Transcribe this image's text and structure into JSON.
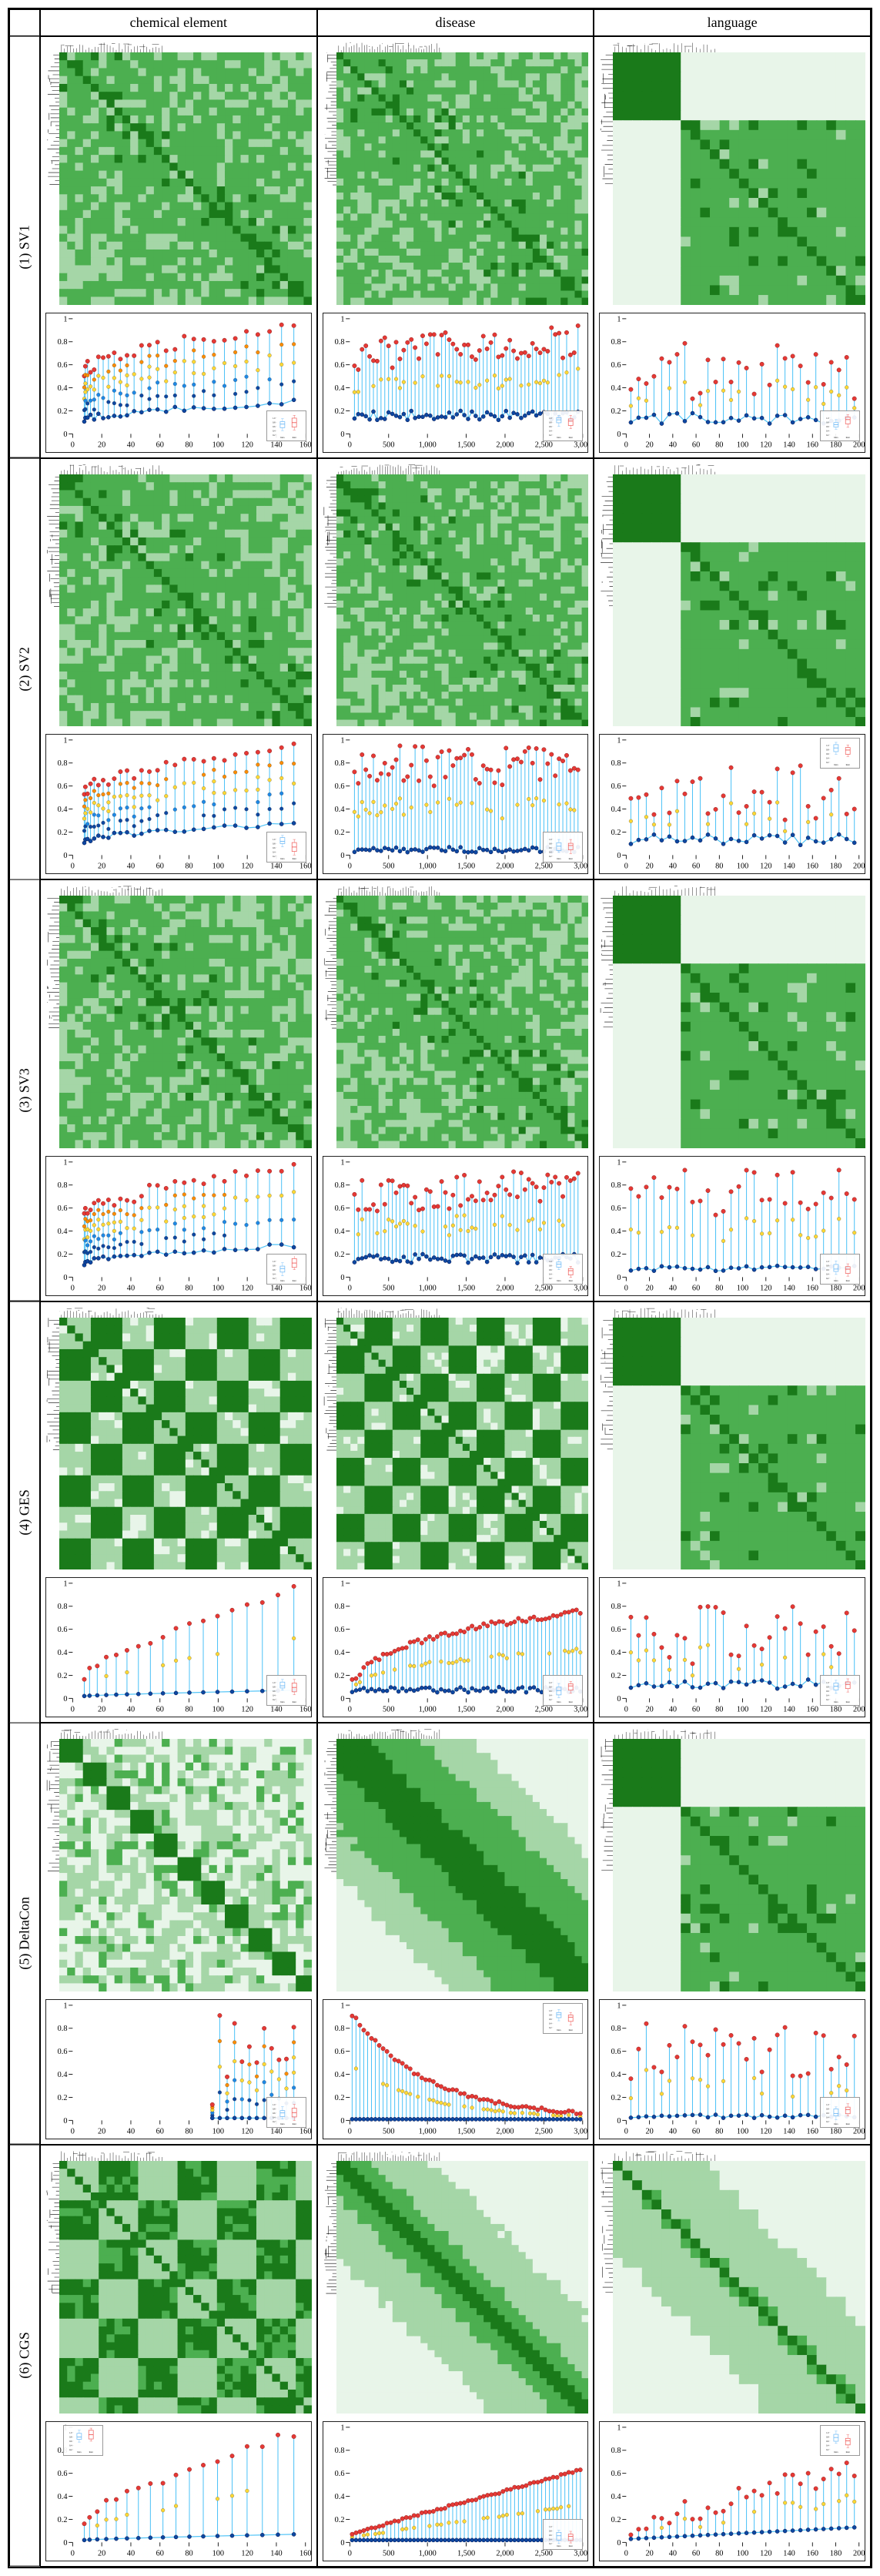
{
  "columns": [
    "chemical element",
    "disease",
    "language"
  ],
  "rows": [
    "(1) SV1",
    "(2) SV2",
    "(3) SV3",
    "(4) GES",
    "(5) DeltaCon",
    "(6) CGS"
  ],
  "colors": {
    "heatmap_dark": "#1a7a1a",
    "heatmap_mid": "#4caf50",
    "heatmap_light": "#a5d6a7",
    "heatmap_vlight": "#e8f5e9",
    "scatter_red": "#e53935",
    "scatter_orange": "#fb8c00",
    "scatter_yellow": "#fdd835",
    "scatter_blue": "#1e88e5",
    "scatter_dblue": "#0d47a1",
    "line": "#4fc3f7",
    "box_blue": "#64b5f6",
    "box_red": "#ef5350",
    "axis": "#222222"
  },
  "scatter_config": {
    "chemical element": {
      "xmax": 160,
      "xticks": [
        0,
        20,
        40,
        60,
        80,
        100,
        120,
        140,
        160
      ]
    },
    "disease": {
      "xmax": 3000,
      "xticks": [
        0,
        500,
        1000,
        1500,
        2000,
        2500,
        3000
      ]
    },
    "language": {
      "xmax": 200,
      "xticks": [
        0,
        20,
        40,
        60,
        80,
        100,
        120,
        140,
        160,
        180,
        200
      ]
    }
  },
  "heatmap_styles": {
    "SV1": {
      "pattern": "textured",
      "blockiness_lang": "blocky"
    },
    "SV2": {
      "pattern": "textured",
      "blockiness_lang": "blocky_soft"
    },
    "SV3": {
      "pattern": "textured",
      "blockiness_lang": "blocky"
    },
    "GES": {
      "pattern": "banded",
      "blockiness_lang": "stripes"
    },
    "DeltaCon": {
      "pattern": "smooth_diag",
      "blockiness_lang": "cross"
    },
    "CGS": {
      "pattern": "banded",
      "blockiness_lang": "soft_diag"
    }
  },
  "scatter_shapes": {
    "SV1": {
      "chemical element": "rising_cluster",
      "disease": "scattered_high",
      "language": "scattered_mid"
    },
    "SV2": {
      "chemical element": "rising_cluster",
      "disease": "scattered_with_drops",
      "language": "scattered_mid"
    },
    "SV3": {
      "chemical element": "rising_cluster",
      "disease": "scattered_high",
      "language": "scattered_high_drops"
    },
    "GES": {
      "chemical element": "sparse_rising",
      "disease": "log_curve",
      "language": "scattered_mid"
    },
    "DeltaCon": {
      "chemical element": "columns",
      "disease": "decay_curve",
      "language": "scattered_drops"
    },
    "CGS": {
      "chemical element": "sparse_rising",
      "disease": "linear_curve",
      "language": "rising_scattered"
    }
  },
  "inset_positions": {
    "default": "bottom_right",
    "overrides": {
      "SV2_language": "top_right",
      "DeltaCon_disease": "top_right",
      "CGS_chemical element": "top_left",
      "CGS_language": "top_right"
    }
  },
  "inset_labels": [
    "Intra",
    "Inter"
  ],
  "inset_yticks": [
    "0.2",
    "0.4",
    "0.6",
    "0.8",
    "1.0"
  ],
  "ylim": [
    0,
    1
  ],
  "yticks": [
    0,
    0.2,
    0.4,
    0.6,
    0.8,
    1.0
  ],
  "ytick_labels": [
    "0",
    "0.2",
    "0.4",
    "0.6",
    "0.8",
    "1"
  ]
}
